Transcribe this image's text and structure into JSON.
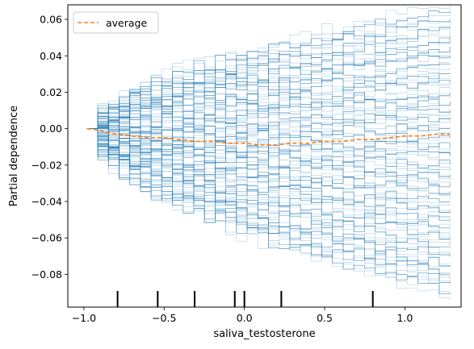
{
  "chart_data": {
    "type": "line",
    "title": "",
    "xlabel": "saliva_testosterone",
    "ylabel": "Partial dependence",
    "xlim": [
      -1.1,
      1.35
    ],
    "ylim": [
      -0.098,
      0.068
    ],
    "xticks": [
      -1.0,
      -0.5,
      0.0,
      0.5,
      1.0
    ],
    "xtick_labels": [
      "−1.0",
      "−0.5",
      "0.0",
      "0.5",
      "1.0"
    ],
    "yticks": [
      -0.08,
      -0.06,
      -0.04,
      -0.02,
      0.0,
      0.02,
      0.04,
      0.06
    ],
    "ytick_labels": [
      "−0.08",
      "−0.06",
      "−0.04",
      "−0.02",
      "0.00",
      "0.02",
      "0.04",
      "0.06"
    ],
    "grid": false,
    "legend": {
      "position": "top-left",
      "entries": [
        "average"
      ]
    },
    "colors": {
      "ice": "#1f77b4",
      "average": "#ff7f0e"
    },
    "series": [
      {
        "name": "average",
        "style": "dashed",
        "x": [
          -0.98,
          -0.9,
          -0.8,
          -0.7,
          -0.6,
          -0.5,
          -0.4,
          -0.3,
          -0.2,
          -0.1,
          0.0,
          0.1,
          0.2,
          0.3,
          0.4,
          0.5,
          0.6,
          0.7,
          0.8,
          0.9,
          1.0,
          1.1,
          1.2,
          1.28
        ],
        "values": [
          0.0,
          -0.001,
          -0.003,
          -0.004,
          -0.005,
          -0.005,
          -0.006,
          -0.007,
          -0.007,
          -0.008,
          -0.008,
          -0.009,
          -0.009,
          -0.008,
          -0.008,
          -0.007,
          -0.007,
          -0.006,
          -0.006,
          -0.005,
          -0.004,
          -0.004,
          -0.003,
          -0.003
        ]
      }
    ],
    "ice_lines": {
      "x_start": -0.98,
      "x_end": 1.28,
      "final_values": [
        0.065,
        0.06,
        0.055,
        0.05,
        0.045,
        0.04,
        0.035,
        0.03,
        0.025,
        0.02,
        0.015,
        0.01,
        0.005,
        0.0,
        -0.005,
        -0.01,
        -0.015,
        -0.02,
        -0.025,
        -0.03,
        -0.035,
        -0.04,
        -0.045,
        -0.05,
        -0.055,
        -0.06,
        -0.065,
        -0.07,
        -0.075,
        -0.08,
        -0.085,
        -0.09
      ]
    },
    "rug_x": [
      -0.79,
      -0.54,
      -0.31,
      -0.06,
      0.0,
      0.23,
      0.8
    ]
  }
}
